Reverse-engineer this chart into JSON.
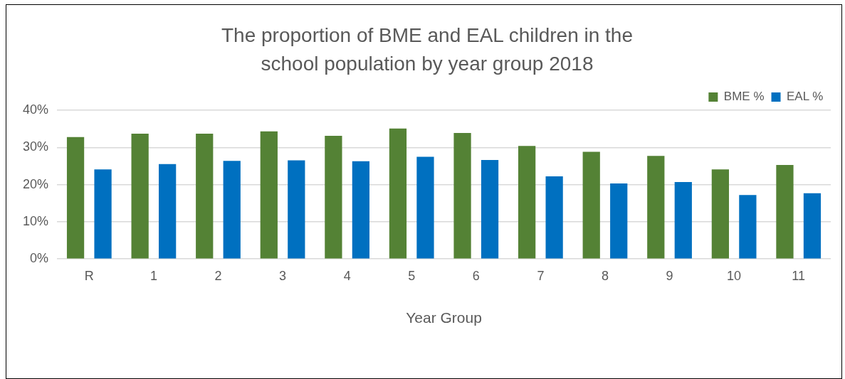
{
  "chart_data": {
    "type": "bar",
    "title": "The proportion of BME and EAL children in the school population by year group 2018",
    "xlabel": "Year Group",
    "categories": [
      "R",
      "1",
      "2",
      "3",
      "4",
      "5",
      "6",
      "7",
      "8",
      "9",
      "10",
      "11"
    ],
    "series": [
      {
        "name": "BME %",
        "color": "#548235",
        "values": [
          32.8,
          33.7,
          33.7,
          34.3,
          33.1,
          35.1,
          33.9,
          30.4,
          28.8,
          27.7,
          24.1,
          25.3
        ]
      },
      {
        "name": "EAL %",
        "color": "#0070c0",
        "values": [
          24.1,
          25.5,
          26.4,
          26.5,
          26.3,
          27.5,
          26.6,
          22.2,
          20.3,
          20.7,
          17.2,
          17.7
        ]
      }
    ],
    "ylim": [
      0,
      40
    ],
    "yticks": [
      {
        "value": 0,
        "label": "0%"
      },
      {
        "value": 10,
        "label": "10%"
      },
      {
        "value": 20,
        "label": "20%"
      },
      {
        "value": 30,
        "label": "30%"
      },
      {
        "value": 40,
        "label": "40%"
      }
    ],
    "grid": "y",
    "legend": "top right"
  }
}
